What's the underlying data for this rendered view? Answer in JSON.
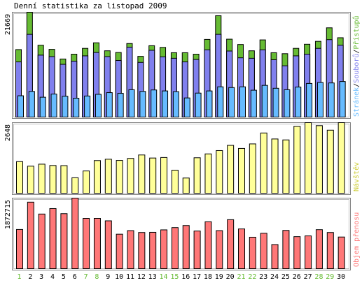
{
  "title": "Denní statistika za listopad 2009",
  "x_labels": [
    "1",
    "2",
    "3",
    "4",
    "5",
    "6",
    "7",
    "8",
    "9",
    "10",
    "11",
    "12",
    "13",
    "14",
    "15",
    "16",
    "17",
    "18",
    "19",
    "20",
    "21",
    "22",
    "23",
    "24",
    "25",
    "26",
    "27",
    "28",
    "29",
    "30"
  ],
  "weekend_days": [
    "1",
    "7",
    "8",
    "14",
    "15",
    "21",
    "22",
    "28",
    "29"
  ],
  "colors": {
    "hits": "#66bb33",
    "files": "#8080ee",
    "pages": "#66bbff",
    "visits": "#ffff99",
    "kbytes": "#ff7777",
    "weekend_label": "#66bb33",
    "weekday_label": "#000000"
  },
  "chart_data": [
    {
      "type": "bar",
      "ymax_label": "21669",
      "legend_text": {
        "pages": "Stránek",
        "files": "Souborů",
        "hits": "Přístupů",
        "sep": "/"
      },
      "series": [
        {
          "name": "Přístupů",
          "key": "hits",
          "values": [
            13950,
            21669,
            14850,
            14000,
            12000,
            13000,
            14200,
            15350,
            13700,
            13350,
            15200,
            12550,
            14750,
            14400,
            13300,
            13300,
            13000,
            16050,
            20950,
            16100,
            15000,
            13700,
            15950,
            13300,
            13100,
            14200,
            15050,
            15650,
            18450,
            16400
          ]
        },
        {
          "name": "Souborů",
          "key": "files",
          "values": [
            11400,
            17100,
            12800,
            12500,
            10900,
            11550,
            12650,
            13350,
            12500,
            11700,
            14450,
            11300,
            13800,
            12450,
            12150,
            11400,
            11900,
            13900,
            17100,
            13650,
            12250,
            12150,
            13900,
            11850,
            10600,
            12650,
            13000,
            14200,
            16000,
            14850
          ]
        },
        {
          "name": "Stránek",
          "key": "pages",
          "values": [
            4400,
            5300,
            4100,
            4750,
            4300,
            3900,
            4350,
            4700,
            5050,
            4900,
            5650,
            5300,
            5600,
            5400,
            5250,
            3950,
            4950,
            5400,
            6250,
            6100,
            6250,
            5550,
            6550,
            5950,
            5650,
            6200,
            6950,
            7150,
            7050,
            7350
          ]
        }
      ]
    },
    {
      "type": "bar",
      "ymax_label": "2648",
      "legend_text": "Návštěv",
      "series": [
        {
          "name": "Návštěv",
          "key": "visits",
          "values": [
            1185,
            1015,
            1090,
            1040,
            1035,
            580,
            835,
            1225,
            1275,
            1230,
            1305,
            1435,
            1320,
            1340,
            865,
            570,
            1330,
            1475,
            1600,
            1795,
            1680,
            1850,
            2260,
            2035,
            2000,
            2510,
            2648,
            2535,
            2365,
            2648
          ]
        }
      ]
    },
    {
      "type": "bar",
      "ymax_label": "1872715",
      "legend_text": "Objem přenosu",
      "series": [
        {
          "name": "Objem přenosu",
          "key": "kbytes",
          "values": [
            1040000,
            1765000,
            1450000,
            1595000,
            1460000,
            1872715,
            1335000,
            1335000,
            1270000,
            915000,
            1010000,
            960000,
            965000,
            1030000,
            1090000,
            1145000,
            1000000,
            1245000,
            1010000,
            1300000,
            1055000,
            835000,
            940000,
            640000,
            1015000,
            850000,
            870000,
            1035000,
            960000,
            840000
          ]
        }
      ]
    }
  ]
}
